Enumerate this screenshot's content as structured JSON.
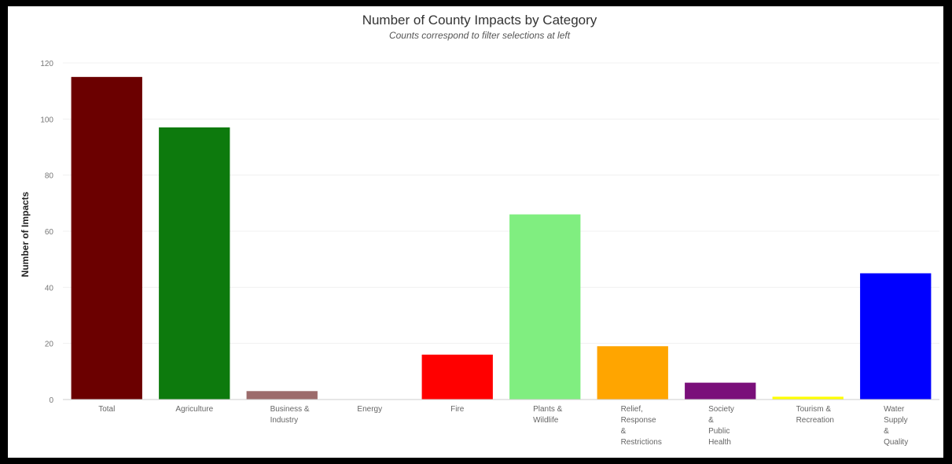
{
  "chart_data": {
    "type": "bar",
    "title": "Number of County Impacts by Category",
    "subtitle": "Counts correspond to filter selections at left",
    "ylabel": "Number of Impacts",
    "xlabel": "",
    "ylim": [
      0,
      120
    ],
    "yticks": [
      0,
      20,
      40,
      60,
      80,
      100,
      120
    ],
    "grid": true,
    "categories": [
      [
        "Total"
      ],
      [
        "Agriculture"
      ],
      [
        "Business &",
        "Industry"
      ],
      [
        "Energy"
      ],
      [
        "Fire"
      ],
      [
        "Plants &",
        "Wildlife"
      ],
      [
        "Relief,",
        "Response",
        "&",
        "Restrictions"
      ],
      [
        "Society",
        "&",
        "Public",
        "Health"
      ],
      [
        "Tourism &",
        "Recreation"
      ],
      [
        "Water",
        "Supply",
        "&",
        "Quality"
      ]
    ],
    "values": [
      115,
      97,
      3,
      0,
      16,
      66,
      19,
      6,
      1,
      45
    ],
    "colors": [
      "#6b0000",
      "#0d7a0d",
      "#9c6b6b",
      "#cccccc",
      "#ff0000",
      "#80ee80",
      "#ffa500",
      "#7a0f7a",
      "#ffff00",
      "#0000ff"
    ]
  }
}
